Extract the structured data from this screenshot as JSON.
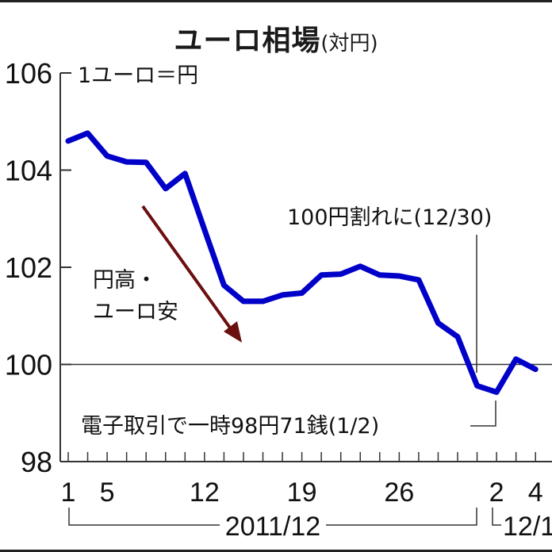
{
  "title": {
    "main": "ユーロ相場",
    "sub": "(対円)"
  },
  "unit_label": "1ユーロ＝円",
  "annotations": {
    "trend": [
      "円高・",
      "ユーロ安"
    ],
    "below_100": "100円割れに(12/30)",
    "low": "電子取引で一時98円71銭(1/2)"
  },
  "axis": {
    "y_ticks": [
      "106",
      "104",
      "102",
      "100",
      "98"
    ],
    "x_ticks": [
      "1",
      "5",
      "12",
      "19",
      "26",
      "2",
      "4"
    ],
    "period_2011": "2011/12",
    "period_2012": "12/1"
  },
  "colors": {
    "line": "#0000c8",
    "arrow": "#6b0f0f",
    "axis": "#333333"
  },
  "chart_data": {
    "type": "line",
    "title": "ユーロ相場(対円)",
    "ylabel": "1ユーロ＝円",
    "xlabel": "",
    "ylim": [
      98,
      106
    ],
    "yticks": [
      98,
      100,
      102,
      104,
      106
    ],
    "x_tick_labels": [
      "1",
      "5",
      "12",
      "19",
      "26",
      "2",
      "4"
    ],
    "x_period_labels": [
      "2011/12",
      "12/1"
    ],
    "grid": false,
    "reference_line": 100,
    "series": [
      {
        "name": "1ユーロ＝円",
        "x": [
          "12/1",
          "12/2",
          "12/5",
          "12/6",
          "12/7",
          "12/8",
          "12/9",
          "12/12",
          "12/13",
          "12/14",
          "12/15",
          "12/16",
          "12/19",
          "12/20",
          "12/21",
          "12/22",
          "12/23",
          "12/26",
          "12/27",
          "12/28",
          "12/29",
          "12/30",
          "1/2",
          "1/3",
          "1/4"
        ],
        "values": [
          104.6,
          104.76,
          104.29,
          104.17,
          104.16,
          103.62,
          103.93,
          102.77,
          101.63,
          101.3,
          101.3,
          101.43,
          101.47,
          101.84,
          101.86,
          102.02,
          101.84,
          101.82,
          101.74,
          100.85,
          100.57,
          99.56,
          99.43,
          100.11,
          99.9
        ]
      }
    ],
    "annotations": [
      {
        "text": "円高・ユーロ安",
        "type": "arrow-down"
      },
      {
        "text": "100円割れに(12/30)",
        "at": "12/30"
      },
      {
        "text": "電子取引で一時98円71銭(1/2)",
        "at": "1/2"
      }
    ]
  }
}
